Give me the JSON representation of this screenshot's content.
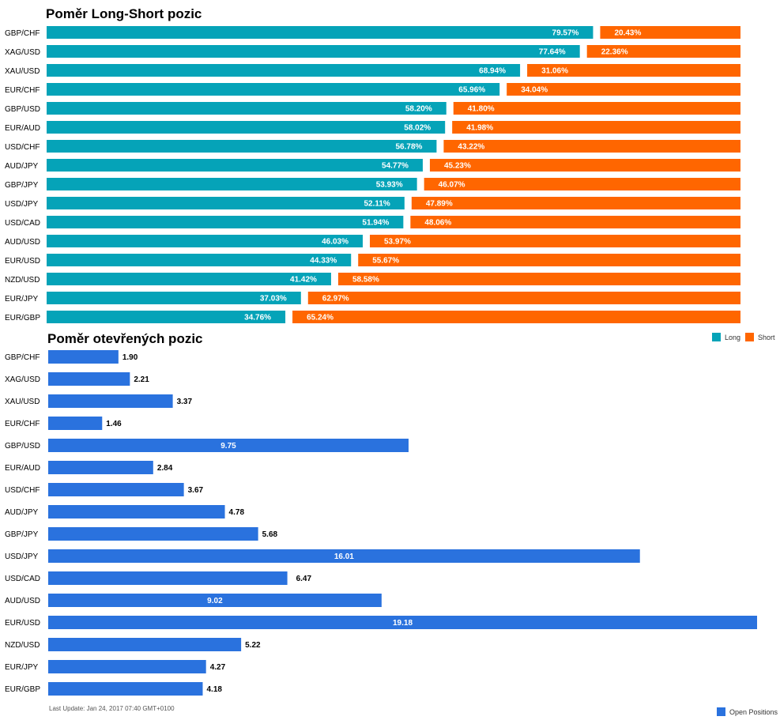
{
  "chart_data": [
    {
      "type": "bar",
      "orientation": "horizontal",
      "stacked": true,
      "title": "Poměr Long-Short pozic",
      "categories": [
        "GBP/CHF",
        "XAG/USD",
        "XAU/USD",
        "EUR/CHF",
        "GBP/USD",
        "EUR/AUD",
        "USD/CHF",
        "AUD/JPY",
        "GBP/JPY",
        "USD/JPY",
        "USD/CAD",
        "AUD/USD",
        "EUR/USD",
        "NZD/USD",
        "EUR/JPY",
        "EUR/GBP"
      ],
      "series": [
        {
          "name": "Long",
          "color": "#05a3b8",
          "values": [
            79.57,
            77.64,
            68.94,
            65.96,
            58.2,
            58.02,
            56.78,
            54.77,
            53.93,
            52.11,
            51.94,
            46.03,
            44.33,
            41.42,
            37.03,
            34.76
          ],
          "labels": [
            "79.57%",
            "77.64%",
            "68.94%",
            "65.96%",
            "58.20%",
            "58.02%",
            "56.78%",
            "54.77%",
            "53.93%",
            "52.11%",
            "51.94%",
            "46.03%",
            "44.33%",
            "41.42%",
            "37.03%",
            "34.76%"
          ]
        },
        {
          "name": "Short",
          "color": "#ff6600",
          "values": [
            20.43,
            22.36,
            31.06,
            34.04,
            41.8,
            41.98,
            43.22,
            45.23,
            46.07,
            47.89,
            48.06,
            53.97,
            55.67,
            58.58,
            62.97,
            65.24
          ],
          "labels": [
            "20.43%",
            "22.36%",
            "31.06%",
            "34.04%",
            "41.80%",
            "41.98%",
            "43.22%",
            "45.23%",
            "46.07%",
            "47.89%",
            "48.06%",
            "53.97%",
            "55.67%",
            "58.58%",
            "62.97%",
            "65.24%"
          ]
        }
      ],
      "legend": "top-right",
      "grid": false
    },
    {
      "type": "bar",
      "orientation": "horizontal",
      "title": "Poměr otevřených pozic",
      "categories": [
        "GBP/CHF",
        "XAG/USD",
        "XAU/USD",
        "EUR/CHF",
        "GBP/USD",
        "EUR/AUD",
        "USD/CHF",
        "AUD/JPY",
        "GBP/JPY",
        "USD/JPY",
        "USD/CAD",
        "AUD/USD",
        "EUR/USD",
        "NZD/USD",
        "EUR/JPY",
        "EUR/GBP"
      ],
      "series": [
        {
          "name": "Open Positions",
          "color": "#2a72de",
          "values": [
            1.9,
            2.21,
            3.37,
            1.46,
            9.75,
            2.84,
            3.67,
            4.78,
            5.68,
            16.01,
            6.47,
            9.02,
            19.18,
            5.22,
            4.27,
            4.18
          ],
          "labels": [
            "1.90",
            "2.21",
            "3.37",
            "1.46",
            "9.75",
            "2.84",
            "3.67",
            "4.78",
            "5.68",
            "16.01",
            "6.47",
            "9.02",
            "19.18",
            "5.22",
            "4.27",
            "4.18"
          ]
        }
      ],
      "legend": "bottom-right",
      "grid": false
    }
  ],
  "footer": {
    "last_update": "Last Update: Jan 24, 2017 07:40 GMT+0100"
  }
}
